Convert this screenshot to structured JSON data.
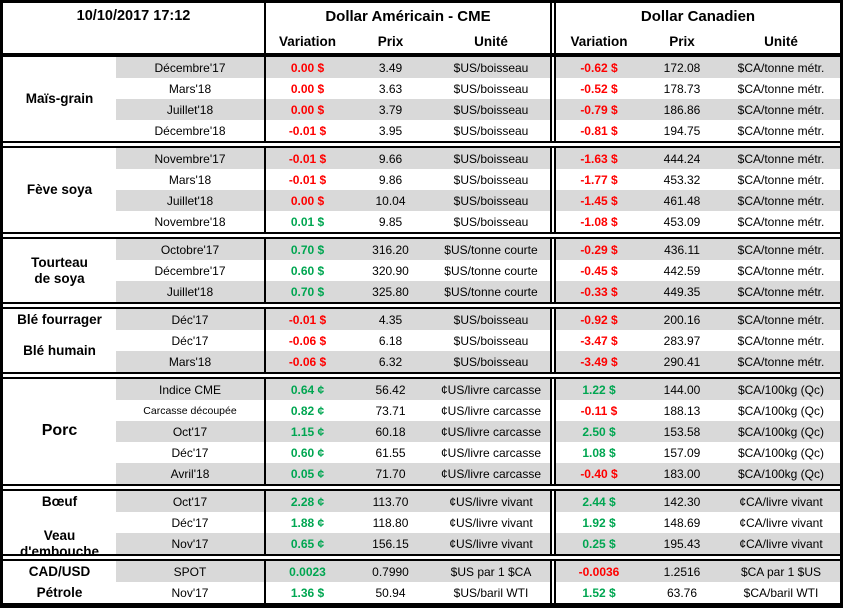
{
  "meta": {
    "timestamp": "10/10/2017 17:12"
  },
  "header": {
    "usd_title": "Dollar Américain - CME",
    "cad_title": "Dollar Canadien",
    "variation": "Variation",
    "prix": "Prix",
    "unite": "Unité"
  },
  "colors": {
    "positive": "#00A651",
    "negative": "#FF0000",
    "stripe": "#D9D9D9",
    "border": "#000000"
  },
  "sections": [
    {
      "labels": [
        {
          "text": "Maïs-grain",
          "row": 1,
          "span": 4
        }
      ],
      "rows": [
        {
          "month": "Décembre'17",
          "usd_var": "0.00 $",
          "usd_dir": "neg",
          "usd_prix": "3.49",
          "usd_unit": "$US/boisseau",
          "cad_var": "-0.62 $",
          "cad_dir": "neg",
          "cad_prix": "172.08",
          "cad_unit": "$CA/tonne métr."
        },
        {
          "month": "Mars'18",
          "usd_var": "0.00 $",
          "usd_dir": "neg",
          "usd_prix": "3.63",
          "usd_unit": "$US/boisseau",
          "cad_var": "-0.52 $",
          "cad_dir": "neg",
          "cad_prix": "178.73",
          "cad_unit": "$CA/tonne métr."
        },
        {
          "month": "Juillet'18",
          "usd_var": "0.00 $",
          "usd_dir": "neg",
          "usd_prix": "3.79",
          "usd_unit": "$US/boisseau",
          "cad_var": "-0.79 $",
          "cad_dir": "neg",
          "cad_prix": "186.86",
          "cad_unit": "$CA/tonne métr."
        },
        {
          "month": "Décembre'18",
          "usd_var": "-0.01 $",
          "usd_dir": "neg",
          "usd_prix": "3.95",
          "usd_unit": "$US/boisseau",
          "cad_var": "-0.81 $",
          "cad_dir": "neg",
          "cad_prix": "194.75",
          "cad_unit": "$CA/tonne métr."
        }
      ]
    },
    {
      "labels": [
        {
          "text": "Fève soya",
          "row": 1,
          "span": 4
        }
      ],
      "rows": [
        {
          "month": "Novembre'17",
          "usd_var": "-0.01 $",
          "usd_dir": "neg",
          "usd_prix": "9.66",
          "usd_unit": "$US/boisseau",
          "cad_var": "-1.63 $",
          "cad_dir": "neg",
          "cad_prix": "444.24",
          "cad_unit": "$CA/tonne métr."
        },
        {
          "month": "Mars'18",
          "usd_var": "-0.01 $",
          "usd_dir": "neg",
          "usd_prix": "9.86",
          "usd_unit": "$US/boisseau",
          "cad_var": "-1.77 $",
          "cad_dir": "neg",
          "cad_prix": "453.32",
          "cad_unit": "$CA/tonne métr."
        },
        {
          "month": "Juillet'18",
          "usd_var": "0.00 $",
          "usd_dir": "neg",
          "usd_prix": "10.04",
          "usd_unit": "$US/boisseau",
          "cad_var": "-1.45 $",
          "cad_dir": "neg",
          "cad_prix": "461.48",
          "cad_unit": "$CA/tonne métr."
        },
        {
          "month": "Novembre'18",
          "usd_var": "0.01 $",
          "usd_dir": "pos",
          "usd_prix": "9.85",
          "usd_unit": "$US/boisseau",
          "cad_var": "-1.08 $",
          "cad_dir": "neg",
          "cad_prix": "453.09",
          "cad_unit": "$CA/tonne métr."
        }
      ]
    },
    {
      "labels": [
        {
          "text": "Tourteau\nde soya",
          "row": 1,
          "span": 3
        }
      ],
      "rows": [
        {
          "month": "Octobre'17",
          "usd_var": "0.70 $",
          "usd_dir": "pos",
          "usd_prix": "316.20",
          "usd_unit": "$US/tonne courte",
          "cad_var": "-0.29 $",
          "cad_dir": "neg",
          "cad_prix": "436.11",
          "cad_unit": "$CA/tonne métr."
        },
        {
          "month": "Décembre'17",
          "usd_var": "0.60 $",
          "usd_dir": "pos",
          "usd_prix": "320.90",
          "usd_unit": "$US/tonne courte",
          "cad_var": "-0.45 $",
          "cad_dir": "neg",
          "cad_prix": "442.59",
          "cad_unit": "$CA/tonne métr."
        },
        {
          "month": "Juillet'18",
          "usd_var": "0.70 $",
          "usd_dir": "pos",
          "usd_prix": "325.80",
          "usd_unit": "$US/tonne courte",
          "cad_var": "-0.33 $",
          "cad_dir": "neg",
          "cad_prix": "449.35",
          "cad_unit": "$CA/tonne métr."
        }
      ]
    },
    {
      "labels": [
        {
          "text": "Blé fourrager",
          "row": 1,
          "span": 1
        },
        {
          "text": "Blé humain",
          "row": 2,
          "span": 2
        }
      ],
      "rows": [
        {
          "month": "Déc'17",
          "usd_var": "-0.01 $",
          "usd_dir": "neg",
          "usd_prix": "4.35",
          "usd_unit": "$US/boisseau",
          "cad_var": "-0.92 $",
          "cad_dir": "neg",
          "cad_prix": "200.16",
          "cad_unit": "$CA/tonne métr."
        },
        {
          "month": "Déc'17",
          "usd_var": "-0.06 $",
          "usd_dir": "neg",
          "usd_prix": "6.18",
          "usd_unit": "$US/boisseau",
          "cad_var": "-3.47 $",
          "cad_dir": "neg",
          "cad_prix": "283.97",
          "cad_unit": "$CA/tonne métr."
        },
        {
          "month": "Mars'18",
          "usd_var": "-0.06 $",
          "usd_dir": "neg",
          "usd_prix": "6.32",
          "usd_unit": "$US/boisseau",
          "cad_var": "-3.49 $",
          "cad_dir": "neg",
          "cad_prix": "290.41",
          "cad_unit": "$CA/tonne métr."
        }
      ]
    },
    {
      "labels": [
        {
          "text": "Porc",
          "row": 1,
          "span": 5,
          "large": true
        }
      ],
      "rows": [
        {
          "month": "Indice CME",
          "usd_var": "0.64 ¢",
          "usd_dir": "pos",
          "usd_prix": "56.42",
          "usd_unit": "¢US/livre carcasse",
          "cad_var": "1.22 $",
          "cad_dir": "pos",
          "cad_prix": "144.00",
          "cad_unit": "$CA/100kg (Qc)"
        },
        {
          "month": "Carcasse découpée",
          "small": true,
          "usd_var": "0.82 ¢",
          "usd_dir": "pos",
          "usd_prix": "73.71",
          "usd_unit": "¢US/livre carcasse",
          "cad_var": "-0.11 $",
          "cad_dir": "neg",
          "cad_prix": "188.13",
          "cad_unit": "$CA/100kg (Qc)"
        },
        {
          "month": "Oct'17",
          "usd_var": "1.15 ¢",
          "usd_dir": "pos",
          "usd_prix": "60.18",
          "usd_unit": "¢US/livre carcasse",
          "cad_var": "2.50 $",
          "cad_dir": "pos",
          "cad_prix": "153.58",
          "cad_unit": "$CA/100kg (Qc)"
        },
        {
          "month": "Déc'17",
          "usd_var": "0.60 ¢",
          "usd_dir": "pos",
          "usd_prix": "61.55",
          "usd_unit": "¢US/livre carcasse",
          "cad_var": "1.08 $",
          "cad_dir": "pos",
          "cad_prix": "157.09",
          "cad_unit": "$CA/100kg (Qc)"
        },
        {
          "month": "Avril'18",
          "usd_var": "0.05 ¢",
          "usd_dir": "pos",
          "usd_prix": "71.70",
          "usd_unit": "¢US/livre carcasse",
          "cad_var": "-0.40 $",
          "cad_dir": "neg",
          "cad_prix": "183.00",
          "cad_unit": "$CA/100kg (Qc)"
        }
      ]
    },
    {
      "labels": [
        {
          "text": "Bœuf",
          "row": 1,
          "span": 1
        },
        {
          "text": "Veau d'embouche",
          "row": 3,
          "span": 1
        }
      ],
      "rows": [
        {
          "month": "Oct'17",
          "usd_var": "2.28 ¢",
          "usd_dir": "pos",
          "usd_prix": "113.70",
          "usd_unit": "¢US/livre vivant",
          "cad_var": "2.44 $",
          "cad_dir": "pos",
          "cad_prix": "142.30",
          "cad_unit": "¢CA/livre vivant"
        },
        {
          "month": "Déc'17",
          "usd_var": "1.88 ¢",
          "usd_dir": "pos",
          "usd_prix": "118.80",
          "usd_unit": "¢US/livre vivant",
          "cad_var": "1.92 $",
          "cad_dir": "pos",
          "cad_prix": "148.69",
          "cad_unit": "¢CA/livre vivant"
        },
        {
          "month": "Nov'17",
          "usd_var": "0.65 ¢",
          "usd_dir": "pos",
          "usd_prix": "156.15",
          "usd_unit": "¢US/livre vivant",
          "cad_var": "0.25 $",
          "cad_dir": "pos",
          "cad_prix": "195.43",
          "cad_unit": "¢CA/livre vivant"
        }
      ]
    },
    {
      "labels": [
        {
          "text": "CAD/USD",
          "row": 1,
          "span": 1
        },
        {
          "text": "Pétrole",
          "row": 2,
          "span": 1
        }
      ],
      "rows": [
        {
          "month": "SPOT",
          "usd_var": "0.0023",
          "usd_dir": "pos",
          "usd_prix": "0.7990",
          "usd_unit": "$US par 1 $CA",
          "cad_var": "-0.0036",
          "cad_dir": "neg",
          "cad_prix": "1.2516",
          "cad_unit": "$CA par 1 $US"
        },
        {
          "month": "Nov'17",
          "usd_var": "1.36 $",
          "usd_dir": "pos",
          "usd_prix": "50.94",
          "usd_unit": "$US/baril WTI",
          "cad_var": "1.52 $",
          "cad_dir": "pos",
          "cad_prix": "63.76",
          "cad_unit": "$CA/baril WTI"
        }
      ]
    }
  ]
}
